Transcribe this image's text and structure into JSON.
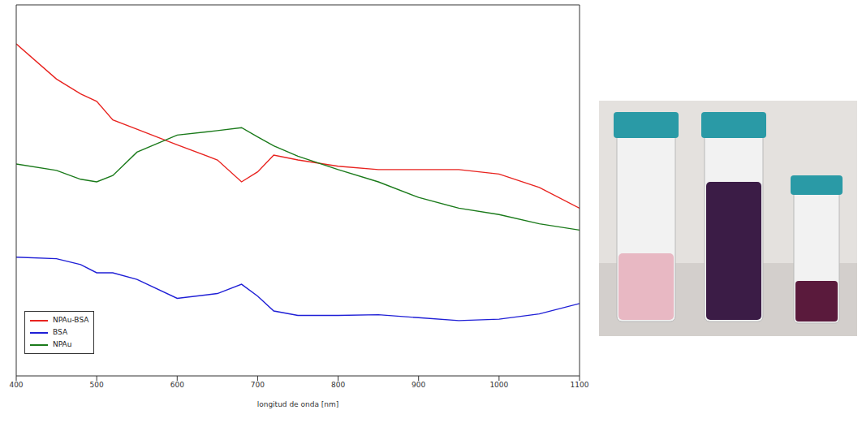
{
  "chart_data": {
    "type": "line",
    "x_label": "longitud de onda [nm]",
    "x": [
      400,
      450,
      480,
      500,
      520,
      550,
      600,
      650,
      680,
      700,
      720,
      750,
      800,
      850,
      900,
      950,
      1000,
      1050,
      1100
    ],
    "series": [
      {
        "name": "NPAu-BSA",
        "color": "#e8231f",
        "values": [
          8.95,
          8.0,
          7.6,
          7.4,
          6.9,
          6.65,
          6.23,
          5.82,
          5.23,
          5.5,
          5.95,
          5.82,
          5.65,
          5.56,
          5.56,
          5.56,
          5.44,
          5.08,
          4.52
        ]
      },
      {
        "name": "BSA",
        "color": "#1f1fd6",
        "values": [
          3.2,
          3.16,
          3.0,
          2.78,
          2.78,
          2.6,
          2.09,
          2.22,
          2.47,
          2.15,
          1.75,
          1.63,
          1.63,
          1.65,
          1.57,
          1.49,
          1.53,
          1.67,
          1.95
        ]
      },
      {
        "name": "NPAu",
        "color": "#1a7a1a",
        "values": [
          5.71,
          5.54,
          5.3,
          5.23,
          5.4,
          6.03,
          6.49,
          6.61,
          6.69,
          6.44,
          6.2,
          5.92,
          5.56,
          5.23,
          4.81,
          4.52,
          4.35,
          4.1,
          3.93
        ]
      }
    ],
    "xlim": [
      400,
      1100
    ],
    "xticks": [
      400,
      500,
      600,
      700,
      800,
      900,
      1000,
      1100
    ],
    "ylim": [
      0,
      10
    ],
    "tick_labels": "x",
    "legend": "lower left",
    "grid": false
  }
}
